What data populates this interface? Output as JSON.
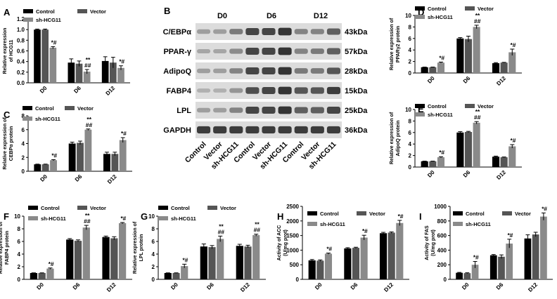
{
  "colors": {
    "control": "#000000",
    "vector": "#555555",
    "sh": "#8a8a8a",
    "blot_bg": "#dcdcdc",
    "band": "#2a2a2a"
  },
  "chart_data": [
    {
      "panel": "A",
      "type": "bar",
      "ylabel": "Relative expression of HCG11",
      "categories": [
        "D0",
        "D6",
        "D12"
      ],
      "ylim": [
        0,
        1.2
      ],
      "yticks": [
        "0.0",
        "0.2",
        "0.4",
        "0.6",
        "0.8",
        "1.0",
        "1.2"
      ],
      "legend": [
        "Control",
        "Vector",
        "sh-HCG11"
      ],
      "series": [
        {
          "name": "Control",
          "values": [
            1.0,
            0.38,
            0.41
          ],
          "errors": [
            0.01,
            0.07,
            0.08
          ]
        },
        {
          "name": "Vector",
          "values": [
            1.0,
            0.36,
            0.38
          ],
          "errors": [
            0.01,
            0.05,
            0.1
          ]
        },
        {
          "name": "sh-HCG11",
          "values": [
            0.66,
            0.21,
            0.28
          ],
          "errors": [
            0.02,
            0.04,
            0.04
          ]
        }
      ],
      "annotations": [
        {
          "category": 0,
          "series": 2,
          "lines": [
            "*#"
          ]
        },
        {
          "category": 1,
          "series": 2,
          "lines": [
            "**",
            "##"
          ]
        },
        {
          "category": 2,
          "series": 2,
          "lines": [
            "*#"
          ]
        }
      ]
    },
    {
      "panel": "C",
      "type": "bar",
      "ylabel": "Relative expression of CEBPα protein",
      "categories": [
        "D0",
        "D6",
        "D12"
      ],
      "ylim": [
        0,
        8
      ],
      "yticks": [
        "0",
        "2",
        "4",
        "6",
        "8"
      ],
      "legend": [
        "Control",
        "Vector",
        "sh-HCG11"
      ],
      "series": [
        {
          "name": "Control",
          "values": [
            1.0,
            4.0,
            2.5
          ],
          "errors": [
            0.03,
            0.2,
            0.25
          ]
        },
        {
          "name": "Vector",
          "values": [
            1.0,
            4.1,
            2.5
          ],
          "errors": [
            0.03,
            0.25,
            0.25
          ]
        },
        {
          "name": "sh-HCG11",
          "values": [
            1.6,
            6.0,
            4.5
          ],
          "errors": [
            0.08,
            0.1,
            0.35
          ]
        }
      ],
      "annotations": [
        {
          "category": 0,
          "series": 2,
          "lines": [
            "*#"
          ]
        },
        {
          "category": 1,
          "series": 2,
          "lines": [
            "**",
            "##"
          ]
        },
        {
          "category": 2,
          "series": 2,
          "lines": [
            "*#"
          ]
        }
      ]
    },
    {
      "panel": "D",
      "type": "bar",
      "ylabel": "Relative expression of PPARγ2 protein",
      "categories": [
        "D0",
        "D6",
        "D12"
      ],
      "ylim": [
        0,
        10
      ],
      "yticks": [
        "0",
        "2",
        "4",
        "6",
        "8",
        "10"
      ],
      "legend": [
        "Control",
        "Vector",
        "sh-HCG11"
      ],
      "series": [
        {
          "name": "Control",
          "values": [
            1.0,
            6.0,
            1.7
          ],
          "errors": [
            0.03,
            0.15,
            0.1
          ]
        },
        {
          "name": "Vector",
          "values": [
            1.0,
            5.9,
            1.8
          ],
          "errors": [
            0.03,
            0.5,
            0.05
          ]
        },
        {
          "name": "sh-HCG11",
          "values": [
            1.8,
            8.0,
            3.6
          ],
          "errors": [
            0.1,
            0.3,
            0.55
          ]
        }
      ],
      "annotations": [
        {
          "category": 0,
          "series": 2,
          "lines": [
            "*#"
          ]
        },
        {
          "category": 1,
          "series": 2,
          "lines": [
            "**",
            "##"
          ]
        },
        {
          "category": 2,
          "series": 2,
          "lines": [
            "*#"
          ]
        }
      ]
    },
    {
      "panel": "E",
      "type": "bar",
      "ylabel": "Relative expression of AdipoQ protein",
      "categories": [
        "D0",
        "D6",
        "D12"
      ],
      "ylim": [
        0,
        10
      ],
      "yticks": [
        "0",
        "2",
        "4",
        "6",
        "8",
        "10"
      ],
      "legend": [
        "Control",
        "Vector",
        "sh-HCG11"
      ],
      "series": [
        {
          "name": "Control",
          "values": [
            1.0,
            6.0,
            1.8
          ],
          "errors": [
            0.03,
            0.15,
            0.1
          ]
        },
        {
          "name": "Vector",
          "values": [
            1.0,
            6.1,
            1.7
          ],
          "errors": [
            0.03,
            0.1,
            0.05
          ]
        },
        {
          "name": "sh-HCG11",
          "values": [
            1.7,
            7.7,
            3.6
          ],
          "errors": [
            0.1,
            0.2,
            0.3
          ]
        }
      ],
      "annotations": [
        {
          "category": 0,
          "series": 2,
          "lines": [
            "*#"
          ]
        },
        {
          "category": 1,
          "series": 2,
          "lines": [
            "**",
            "##"
          ]
        },
        {
          "category": 2,
          "series": 2,
          "lines": [
            "*#"
          ]
        }
      ]
    },
    {
      "panel": "F",
      "type": "bar",
      "ylabel": "Relative expression of FABP4 protein",
      "categories": [
        "D0",
        "D6",
        "D12"
      ],
      "ylim": [
        0,
        10
      ],
      "yticks": [
        "0",
        "2",
        "4",
        "6",
        "8",
        "10"
      ],
      "legend": [
        "Control",
        "Vector",
        "sh-HCG11"
      ],
      "series": [
        {
          "name": "Control",
          "values": [
            1.0,
            6.3,
            6.7
          ],
          "errors": [
            0.03,
            0.15,
            0.15
          ]
        },
        {
          "name": "Vector",
          "values": [
            1.0,
            6.1,
            6.5
          ],
          "errors": [
            0.03,
            0.15,
            0.25
          ]
        },
        {
          "name": "sh-HCG11",
          "values": [
            1.7,
            8.2,
            8.9
          ],
          "errors": [
            0.1,
            0.35,
            0.1
          ]
        }
      ],
      "annotations": [
        {
          "category": 0,
          "series": 2,
          "lines": [
            "*#"
          ]
        },
        {
          "category": 1,
          "series": 2,
          "lines": [
            "**",
            "##"
          ]
        },
        {
          "category": 2,
          "series": 2,
          "lines": [
            "*#"
          ]
        }
      ]
    },
    {
      "panel": "G",
      "type": "bar",
      "ylabel": "Relative expression of LPL protein",
      "categories": [
        "D0",
        "D6",
        "D12"
      ],
      "ylim": [
        0,
        10
      ],
      "yticks": [
        "0",
        "2",
        "4",
        "6",
        "8",
        "10"
      ],
      "legend": [
        "Control",
        "Vector",
        "sh-HCG11"
      ],
      "series": [
        {
          "name": "Control",
          "values": [
            1.0,
            5.2,
            5.3
          ],
          "errors": [
            0.03,
            0.4,
            0.25
          ]
        },
        {
          "name": "Vector",
          "values": [
            1.0,
            5.1,
            5.2
          ],
          "errors": [
            0.03,
            0.25,
            0.2
          ]
        },
        {
          "name": "sh-HCG11",
          "values": [
            2.1,
            6.4,
            7.0
          ],
          "errors": [
            0.3,
            0.45,
            0.15
          ]
        }
      ],
      "annotations": [
        {
          "category": 0,
          "series": 2,
          "lines": [
            "*#"
          ]
        },
        {
          "category": 1,
          "series": 2,
          "lines": [
            "**",
            "##"
          ]
        },
        {
          "category": 2,
          "series": 2,
          "lines": [
            "**",
            "##"
          ]
        }
      ]
    },
    {
      "panel": "H",
      "type": "bar",
      "ylabel": "Activity of ACC (U/mg prot)",
      "categories": [
        "D0",
        "D6",
        "D12"
      ],
      "ylim": [
        0,
        2500
      ],
      "yticks": [
        "0",
        "500",
        "1000",
        "1500",
        "2000",
        "2500"
      ],
      "legend": [
        "Control",
        "Vector",
        "sh-HCG11"
      ],
      "series": [
        {
          "name": "Control",
          "values": [
            650,
            1060,
            1580
          ],
          "errors": [
            30,
            25,
            30
          ]
        },
        {
          "name": "Vector",
          "values": [
            640,
            1080,
            1600
          ],
          "errors": [
            25,
            20,
            25
          ]
        },
        {
          "name": "sh-HCG11",
          "values": [
            880,
            1430,
            1930
          ],
          "errors": [
            20,
            80,
            90
          ]
        }
      ],
      "annotations": [
        {
          "category": 0,
          "series": 2,
          "lines": [
            "*#"
          ]
        },
        {
          "category": 1,
          "series": 2,
          "lines": [
            "*#"
          ]
        },
        {
          "category": 2,
          "series": 2,
          "lines": [
            "*#"
          ]
        }
      ]
    },
    {
      "panel": "I",
      "type": "bar",
      "ylabel": "Activity of FAS (U/mg prot)",
      "categories": [
        "D0",
        "D6",
        "D12"
      ],
      "ylim": [
        0,
        1000
      ],
      "yticks": [
        "0",
        "200",
        "400",
        "600",
        "800",
        "1000"
      ],
      "legend": [
        "Control",
        "Vector",
        "sh-HCG11"
      ],
      "series": [
        {
          "name": "Control",
          "values": [
            90,
            330,
            560
          ],
          "errors": [
            5,
            10,
            50
          ]
        },
        {
          "name": "Vector",
          "values": [
            85,
            310,
            615
          ],
          "errors": [
            5,
            25,
            30
          ]
        },
        {
          "name": "sh-HCG11",
          "values": [
            200,
            490,
            860
          ],
          "errors": [
            45,
            60,
            50
          ]
        }
      ],
      "annotations": [
        {
          "category": 0,
          "series": 2,
          "lines": [
            "*#"
          ]
        },
        {
          "category": 1,
          "series": 2,
          "lines": [
            "*#"
          ]
        },
        {
          "category": 2,
          "series": 2,
          "lines": [
            "*#"
          ]
        }
      ]
    }
  ],
  "blot": {
    "panel": "B",
    "days": [
      "D0",
      "D6",
      "D12"
    ],
    "proteins": [
      "C/EBPα",
      "PPAR-γ",
      "AdipoQ",
      "FABP4",
      "LPL",
      "GAPDH"
    ],
    "sizes": [
      "43kDa",
      "57kDa",
      "28kDa",
      "15kDa",
      "25kDa",
      "36kDa"
    ],
    "lanes": [
      "Control",
      "Vector",
      "sh-HCG11",
      "Control",
      "Vector",
      "sh-HCG11",
      "Control",
      "Vector",
      "sh-HCG11"
    ],
    "intensity": [
      [
        0.35,
        0.35,
        0.55,
        0.85,
        0.85,
        0.95,
        0.5,
        0.5,
        0.7
      ],
      [
        0.3,
        0.3,
        0.45,
        0.85,
        0.85,
        0.95,
        0.5,
        0.55,
        0.7
      ],
      [
        0.35,
        0.35,
        0.5,
        0.85,
        0.85,
        0.95,
        0.55,
        0.55,
        0.75
      ],
      [
        0.25,
        0.25,
        0.4,
        0.8,
        0.85,
        0.95,
        0.75,
        0.75,
        0.9
      ],
      [
        0.35,
        0.35,
        0.5,
        0.85,
        0.85,
        0.95,
        0.7,
        0.7,
        0.85
      ],
      [
        0.9,
        0.9,
        0.9,
        0.9,
        0.9,
        0.9,
        0.9,
        0.9,
        0.9
      ]
    ]
  }
}
